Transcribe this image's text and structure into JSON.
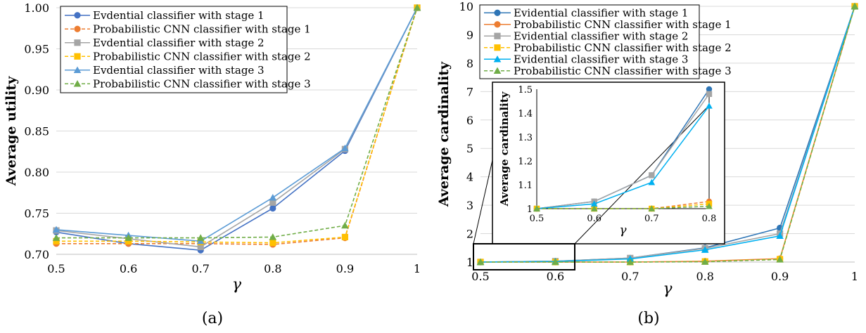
{
  "chart_data": [
    {
      "type": "line",
      "panel_label": "(a)",
      "xlabel": "γ",
      "ylabel": "Average utility",
      "x": [
        0.5,
        0.6,
        0.7,
        0.8,
        0.9,
        1
      ],
      "x_tick_labels": [
        "0.5",
        "0.6",
        "0.7",
        "0.8",
        "0.9",
        "1"
      ],
      "xlim": [
        0.5,
        1
      ],
      "ylim": [
        0.7,
        1.0
      ],
      "y_ticks": [
        0.7,
        0.75,
        0.8,
        0.85,
        0.9,
        0.95,
        1.0
      ],
      "y_tick_labels": [
        "0.70",
        "0.75",
        "0.80",
        "0.85",
        "0.90",
        "0.95",
        "1.00"
      ],
      "grid": "horizontal",
      "legend_position": "top-left",
      "series": [
        {
          "name": "Evdential classifier with stage 1",
          "values": [
            0.727,
            0.713,
            0.705,
            0.756,
            0.826,
            1.0
          ],
          "color": "#4472C4",
          "marker": "circle",
          "dash": false
        },
        {
          "name": "Probabilistic CNN classifier with stage 1",
          "values": [
            0.713,
            0.713,
            0.713,
            0.712,
            0.72,
            1.0
          ],
          "color": "#ED7D31",
          "marker": "circle",
          "dash": true
        },
        {
          "name": "Evdential classifier with stage 2",
          "values": [
            0.729,
            0.719,
            0.709,
            0.763,
            0.828,
            1.0
          ],
          "color": "#A5A5A5",
          "marker": "square",
          "dash": false
        },
        {
          "name": "Probabilistic CNN classifier with stage 2",
          "values": [
            0.716,
            0.716,
            0.715,
            0.714,
            0.721,
            1.0
          ],
          "color": "#FFC000",
          "marker": "square",
          "dash": true
        },
        {
          "name": "Evdential classifier with stage 3",
          "values": [
            0.73,
            0.723,
            0.716,
            0.769,
            0.829,
            1.0
          ],
          "color": "#5B9BD5",
          "marker": "triangle",
          "dash": false
        },
        {
          "name": "Probabilistic CNN classifier with stage 3",
          "values": [
            0.72,
            0.72,
            0.72,
            0.721,
            0.735,
            1.0
          ],
          "color": "#70AD47",
          "marker": "triangle",
          "dash": true
        }
      ]
    },
    {
      "type": "line",
      "panel_label": "(b)",
      "xlabel": "γ",
      "ylabel": "Average cardinality",
      "x": [
        0.5,
        0.6,
        0.7,
        0.8,
        0.9,
        1
      ],
      "x_tick_labels": [
        "0.5",
        "0.6",
        "0.7",
        "0.8",
        "0.9",
        "1"
      ],
      "xlim": [
        0.5,
        1
      ],
      "ylim": [
        1,
        10
      ],
      "y_ticks": [
        1,
        2,
        3,
        4,
        5,
        6,
        7,
        8,
        9,
        10
      ],
      "y_tick_labels": [
        "1",
        "2",
        "3",
        "4",
        "5",
        "6",
        "7",
        "8",
        "9",
        "10"
      ],
      "grid": "horizontal",
      "legend_position": "top-left",
      "series": [
        {
          "name": "Evidential classifier with stage 1",
          "values": [
            1.0,
            1.03,
            1.14,
            1.5,
            2.2,
            10.0
          ],
          "color": "#2E75B6",
          "marker": "circle",
          "dash": false
        },
        {
          "name": "Probabilistic CNN classifier with stage 1",
          "values": [
            1.0,
            1.0,
            1.0,
            1.03,
            1.12,
            10.0
          ],
          "color": "#ED7D31",
          "marker": "circle",
          "dash": false
        },
        {
          "name": "Evidential classifier with stage 2",
          "values": [
            1.0,
            1.03,
            1.14,
            1.48,
            2.0,
            10.0
          ],
          "color": "#A5A5A5",
          "marker": "square",
          "dash": false
        },
        {
          "name": "Probabilistic CNN classifier with stage 2",
          "values": [
            1.0,
            1.0,
            1.0,
            1.02,
            1.1,
            10.0
          ],
          "color": "#FFC000",
          "marker": "square",
          "dash": true
        },
        {
          "name": "Evidential classifier with stage 3",
          "values": [
            1.0,
            1.02,
            1.11,
            1.43,
            1.92,
            10.0
          ],
          "color": "#00B0F0",
          "marker": "triangle",
          "dash": false
        },
        {
          "name": "Probabilistic CNN classifier with stage 3",
          "values": [
            1.0,
            1.0,
            1.0,
            1.01,
            1.09,
            10.0
          ],
          "color": "#70AD47",
          "marker": "triangle",
          "dash": true
        }
      ]
    }
  ],
  "inset": {
    "type": "line",
    "xlabel": "γ",
    "ylabel": "Average cardinality",
    "x": [
      0.5,
      0.6,
      0.7,
      0.8
    ],
    "x_tick_labels": [
      "0.5",
      "0.6",
      "0.7",
      "0.8"
    ],
    "ylim": [
      1,
      1.5
    ],
    "y_ticks": [
      1,
      1.1,
      1.2,
      1.3,
      1.4,
      1.5
    ],
    "y_tick_labels": [
      "1",
      "1.1",
      "1.2",
      "1.3",
      "1.4",
      "1.5"
    ]
  }
}
